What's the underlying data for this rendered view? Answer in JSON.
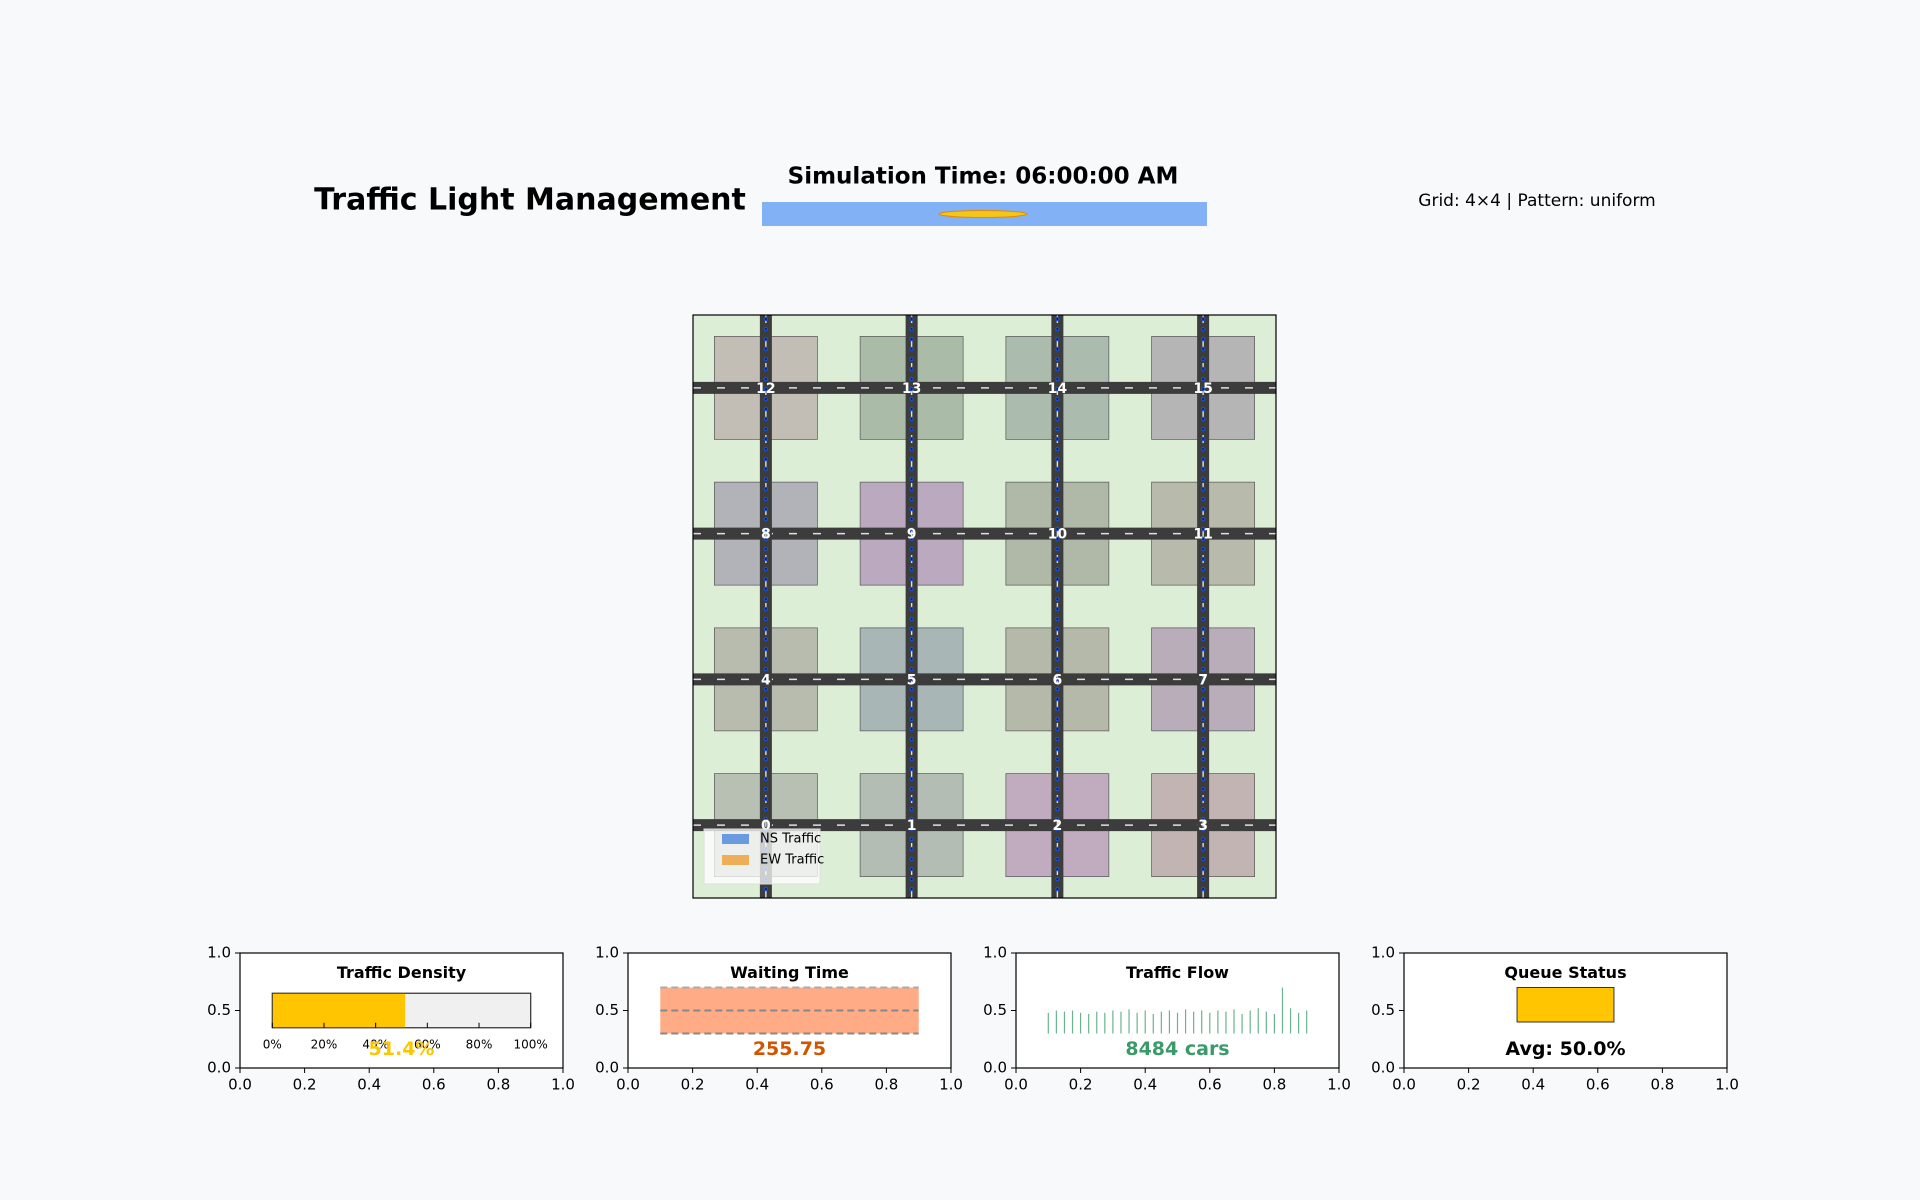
{
  "header": {
    "title": "Traffic Light Management",
    "sim_time": "Simulation Time: 06:00:00 AM",
    "info": "Grid: 4×4 | Pattern: uniform"
  },
  "map": {
    "intersections": [
      {
        "id": 0,
        "color": "#b8bfb3"
      },
      {
        "id": 1,
        "color": "#b3bdb3"
      },
      {
        "id": 2,
        "color": "#c0acbe"
      },
      {
        "id": 3,
        "color": "#c2b4b3"
      },
      {
        "id": 4,
        "color": "#b7bcaf"
      },
      {
        "id": 5,
        "color": "#a9b6b6"
      },
      {
        "id": 6,
        "color": "#b5b9a9"
      },
      {
        "id": 7,
        "color": "#b8adb8"
      },
      {
        "id": 8,
        "color": "#b2b3b9"
      },
      {
        "id": 9,
        "color": "#bba9bf"
      },
      {
        "id": 10,
        "color": "#b0b8a8"
      },
      {
        "id": 11,
        "color": "#b8bbab"
      },
      {
        "id": 12,
        "color": "#c2bdb5"
      },
      {
        "id": 13,
        "color": "#aabca8"
      },
      {
        "id": 14,
        "color": "#abbcaf"
      },
      {
        "id": 15,
        "color": "#b5b5b5"
      }
    ],
    "legend": [
      {
        "name": "NS Traffic",
        "color": "#6a9be0"
      },
      {
        "name": "EW Traffic",
        "color": "#eeae58"
      }
    ]
  },
  "panels": {
    "xticks": [
      {
        "value": 0,
        "label": "0.0"
      },
      {
        "value": 0.2,
        "label": "0.2"
      },
      {
        "value": 0.4,
        "label": "0.4"
      },
      {
        "value": 0.6,
        "label": "0.6"
      },
      {
        "value": 0.8,
        "label": "0.8"
      },
      {
        "value": 1,
        "label": "1.0"
      }
    ],
    "yticks": [
      {
        "value": 0,
        "label": "0.0"
      },
      {
        "value": 0.5,
        "label": "0.5"
      },
      {
        "value": 1,
        "label": "1.0"
      }
    ],
    "density": {
      "title": "Traffic Density",
      "value": 51.4,
      "value_label": "51.4%",
      "color": "#ffc600",
      "scale_ticks": [
        {
          "value": 0,
          "label": "0%"
        },
        {
          "value": 20,
          "label": "20%"
        },
        {
          "value": 40,
          "label": "40%"
        },
        {
          "value": 60,
          "label": "60%"
        },
        {
          "value": 80,
          "label": "80%"
        },
        {
          "value": 100,
          "label": "100%"
        }
      ]
    },
    "waiting": {
      "title": "Waiting Time",
      "value": 255.75,
      "color": "#d35400"
    },
    "flow": {
      "title": "Traffic Flow",
      "total": "8484 cars",
      "color": "#3a9a6a",
      "x": [
        0.1,
        0.125,
        0.15,
        0.175,
        0.2,
        0.225,
        0.25,
        0.275,
        0.3,
        0.325,
        0.35,
        0.375,
        0.4,
        0.425,
        0.45,
        0.475,
        0.5,
        0.525,
        0.55,
        0.575,
        0.6,
        0.625,
        0.65,
        0.675,
        0.7,
        0.725,
        0.75,
        0.775,
        0.8,
        0.825,
        0.85,
        0.875,
        0.9
      ],
      "values": [
        0.48,
        0.5,
        0.49,
        0.5,
        0.48,
        0.47,
        0.49,
        0.48,
        0.5,
        0.49,
        0.51,
        0.48,
        0.5,
        0.47,
        0.49,
        0.5,
        0.48,
        0.51,
        0.49,
        0.5,
        0.48,
        0.5,
        0.49,
        0.51,
        0.47,
        0.5,
        0.52,
        0.49,
        0.47,
        0.7,
        0.52,
        0.48,
        0.5
      ]
    },
    "queue": {
      "title": "Queue Status",
      "label": "Avg: 50.0%",
      "color": "#ffc600"
    }
  }
}
